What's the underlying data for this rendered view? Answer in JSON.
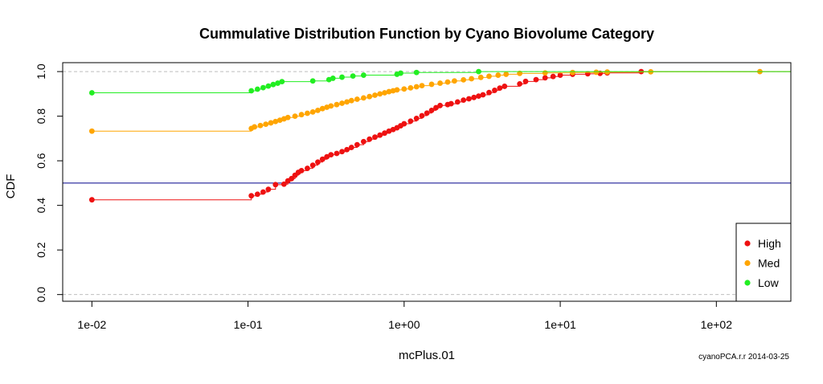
{
  "chart_data": {
    "type": "scatter",
    "title": "Cummulative Distribution Function by Cyano Biovolume Category",
    "xlabel": "mcPlus.01",
    "ylabel": "CDF",
    "x_scale": "log",
    "xlim": [
      0.0065,
      300
    ],
    "ylim": [
      -0.03,
      1.04
    ],
    "x_ticks": [
      {
        "value": 0.01,
        "label": "1e-02"
      },
      {
        "value": 0.1,
        "label": "1e-01"
      },
      {
        "value": 1,
        "label": "1e+00"
      },
      {
        "value": 10,
        "label": "1e+01"
      },
      {
        "value": 100,
        "label": "1e+02"
      }
    ],
    "y_ticks": [
      {
        "value": 0.0,
        "label": "0.0"
      },
      {
        "value": 0.2,
        "label": "0.2"
      },
      {
        "value": 0.4,
        "label": "0.4"
      },
      {
        "value": 0.6,
        "label": "0.6"
      },
      {
        "value": 0.8,
        "label": "0.8"
      },
      {
        "value": 1.0,
        "label": "1.0"
      }
    ],
    "reference_lines": [
      {
        "orientation": "horizontal",
        "y": 0.5,
        "color": "#00008B",
        "style": "solid"
      },
      {
        "orientation": "horizontal",
        "y": 0.0,
        "color": "#BEBEBE",
        "style": "dashed"
      },
      {
        "orientation": "horizontal",
        "y": 1.0,
        "color": "#BEBEBE",
        "style": "dashed"
      }
    ],
    "legend_position": "bottom-right",
    "series": [
      {
        "name": "High",
        "color": "#EE1111",
        "points": [
          [
            0.01,
            0.425
          ],
          [
            0.105,
            0.443
          ],
          [
            0.115,
            0.45
          ],
          [
            0.125,
            0.46
          ],
          [
            0.135,
            0.472
          ],
          [
            0.15,
            0.493
          ],
          [
            0.17,
            0.495
          ],
          [
            0.18,
            0.51
          ],
          [
            0.19,
            0.52
          ],
          [
            0.2,
            0.535
          ],
          [
            0.21,
            0.548
          ],
          [
            0.22,
            0.556
          ],
          [
            0.24,
            0.566
          ],
          [
            0.26,
            0.58
          ],
          [
            0.28,
            0.594
          ],
          [
            0.3,
            0.607
          ],
          [
            0.32,
            0.618
          ],
          [
            0.34,
            0.627
          ],
          [
            0.37,
            0.633
          ],
          [
            0.4,
            0.641
          ],
          [
            0.43,
            0.65
          ],
          [
            0.46,
            0.66
          ],
          [
            0.5,
            0.672
          ],
          [
            0.55,
            0.686
          ],
          [
            0.6,
            0.697
          ],
          [
            0.65,
            0.706
          ],
          [
            0.7,
            0.715
          ],
          [
            0.75,
            0.724
          ],
          [
            0.8,
            0.733
          ],
          [
            0.85,
            0.74
          ],
          [
            0.9,
            0.748
          ],
          [
            0.95,
            0.757
          ],
          [
            1.0,
            0.766
          ],
          [
            1.1,
            0.778
          ],
          [
            1.2,
            0.79
          ],
          [
            1.3,
            0.802
          ],
          [
            1.4,
            0.814
          ],
          [
            1.5,
            0.826
          ],
          [
            1.6,
            0.838
          ],
          [
            1.7,
            0.848
          ],
          [
            1.9,
            0.852
          ],
          [
            2.0,
            0.856
          ],
          [
            2.2,
            0.864
          ],
          [
            2.4,
            0.872
          ],
          [
            2.6,
            0.878
          ],
          [
            2.8,
            0.884
          ],
          [
            3.0,
            0.89
          ],
          [
            3.2,
            0.896
          ],
          [
            3.5,
            0.906
          ],
          [
            3.8,
            0.916
          ],
          [
            4.1,
            0.926
          ],
          [
            4.4,
            0.934
          ],
          [
            5.5,
            0.945
          ],
          [
            6.0,
            0.956
          ],
          [
            7.0,
            0.964
          ],
          [
            8.0,
            0.972
          ],
          [
            9.0,
            0.978
          ],
          [
            10.0,
            0.984
          ],
          [
            12.0,
            0.988
          ],
          [
            15.0,
            0.99
          ],
          [
            18.0,
            0.992
          ],
          [
            20.0,
            0.994
          ],
          [
            33.0,
            1.0
          ]
        ]
      },
      {
        "name": "Med",
        "color": "#FFA500",
        "points": [
          [
            0.01,
            0.733
          ],
          [
            0.105,
            0.745
          ],
          [
            0.11,
            0.752
          ],
          [
            0.12,
            0.758
          ],
          [
            0.13,
            0.764
          ],
          [
            0.14,
            0.77
          ],
          [
            0.15,
            0.776
          ],
          [
            0.16,
            0.782
          ],
          [
            0.17,
            0.788
          ],
          [
            0.18,
            0.794
          ],
          [
            0.2,
            0.8
          ],
          [
            0.22,
            0.807
          ],
          [
            0.24,
            0.813
          ],
          [
            0.26,
            0.819
          ],
          [
            0.28,
            0.826
          ],
          [
            0.3,
            0.834
          ],
          [
            0.32,
            0.84
          ],
          [
            0.34,
            0.846
          ],
          [
            0.37,
            0.852
          ],
          [
            0.4,
            0.858
          ],
          [
            0.43,
            0.864
          ],
          [
            0.46,
            0.87
          ],
          [
            0.5,
            0.876
          ],
          [
            0.55,
            0.882
          ],
          [
            0.6,
            0.888
          ],
          [
            0.65,
            0.894
          ],
          [
            0.7,
            0.9
          ],
          [
            0.75,
            0.905
          ],
          [
            0.8,
            0.91
          ],
          [
            0.85,
            0.914
          ],
          [
            0.9,
            0.918
          ],
          [
            1.0,
            0.922
          ],
          [
            1.1,
            0.927
          ],
          [
            1.2,
            0.932
          ],
          [
            1.3,
            0.937
          ],
          [
            1.5,
            0.943
          ],
          [
            1.7,
            0.948
          ],
          [
            1.9,
            0.953
          ],
          [
            2.1,
            0.958
          ],
          [
            2.4,
            0.963
          ],
          [
            2.7,
            0.968
          ],
          [
            3.1,
            0.974
          ],
          [
            3.5,
            0.979
          ],
          [
            4.0,
            0.984
          ],
          [
            4.5,
            0.988
          ],
          [
            5.5,
            0.992
          ],
          [
            8.0,
            0.994
          ],
          [
            12.0,
            0.996
          ],
          [
            17.0,
            0.997
          ],
          [
            20.0,
            0.998
          ],
          [
            38.0,
            0.999
          ],
          [
            190.0,
            1.0
          ]
        ]
      },
      {
        "name": "Low",
        "color": "#22EE22",
        "points": [
          [
            0.01,
            0.905
          ],
          [
            0.105,
            0.914
          ],
          [
            0.115,
            0.921
          ],
          [
            0.125,
            0.928
          ],
          [
            0.135,
            0.935
          ],
          [
            0.145,
            0.942
          ],
          [
            0.155,
            0.948
          ],
          [
            0.165,
            0.955
          ],
          [
            0.26,
            0.958
          ],
          [
            0.33,
            0.964
          ],
          [
            0.35,
            0.97
          ],
          [
            0.4,
            0.975
          ],
          [
            0.47,
            0.98
          ],
          [
            0.55,
            0.984
          ],
          [
            0.9,
            0.988
          ],
          [
            0.95,
            0.993
          ],
          [
            1.2,
            0.996
          ],
          [
            3.0,
            1.0
          ]
        ]
      }
    ]
  },
  "footnote": "cyanoPCA.r.r 2014-03-25"
}
